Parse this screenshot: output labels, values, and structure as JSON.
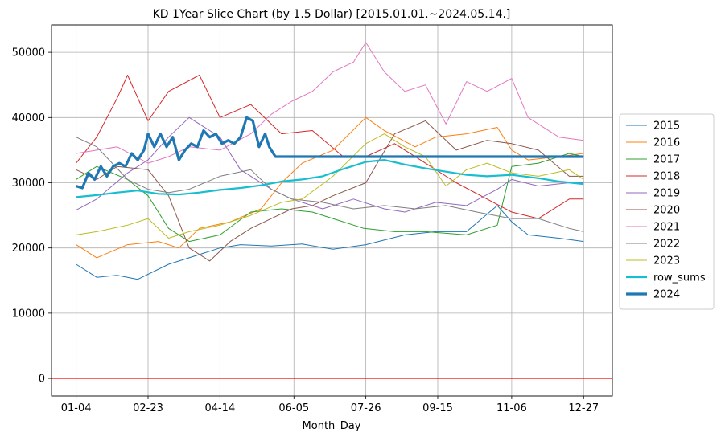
{
  "chart_data": {
    "type": "line",
    "title": "KD 1Year Slice Chart (by 1.5 Dollar) [2015.01.01.~2024.05.14.]",
    "xlabel": "Month_Day",
    "ylabel": "",
    "x_tick_labels": [
      "01-04",
      "02-23",
      "04-14",
      "06-05",
      "07-26",
      "09-15",
      "11-06",
      "12-27"
    ],
    "x_tick_day_index": [
      0,
      35,
      70,
      106,
      141,
      176,
      212,
      247
    ],
    "x_range": [
      -12,
      261
    ],
    "y_ticks": [
      0,
      10000,
      20000,
      30000,
      40000,
      50000
    ],
    "ylim": [
      -2700,
      54200
    ],
    "grid": true,
    "legend_position": "center-right, outside plot",
    "reference_line": {
      "y": 0,
      "color": "#ff0000"
    },
    "series": [
      {
        "name": "2015",
        "color": "#1f77b4",
        "width": 1,
        "x": [
          0,
          10,
          20,
          30,
          45,
          55,
          70,
          80,
          95,
          110,
          125,
          141,
          160,
          175,
          190,
          205,
          212,
          220,
          235,
          247
        ],
        "values": [
          17500,
          15500,
          15800,
          15200,
          17500,
          18500,
          20000,
          20500,
          20300,
          20600,
          19800,
          20500,
          22000,
          22500,
          22500,
          26500,
          24000,
          22000,
          21500,
          21000
        ]
      },
      {
        "name": "2016",
        "color": "#ff7f0e",
        "width": 1,
        "x": [
          0,
          10,
          25,
          40,
          50,
          60,
          75,
          90,
          100,
          110,
          125,
          141,
          150,
          165,
          175,
          190,
          205,
          212,
          220,
          235,
          247
        ],
        "values": [
          20500,
          18500,
          20500,
          21000,
          20000,
          23000,
          24000,
          26000,
          30000,
          33000,
          35000,
          40000,
          38000,
          35500,
          37000,
          37500,
          38500,
          35000,
          33500,
          34000,
          34500
        ]
      },
      {
        "name": "2017",
        "color": "#2ca02c",
        "width": 1,
        "x": [
          0,
          10,
          25,
          35,
          45,
          55,
          70,
          85,
          100,
          115,
          125,
          140,
          155,
          170,
          190,
          205,
          212,
          225,
          240,
          247
        ],
        "values": [
          30500,
          32500,
          30500,
          28000,
          23000,
          21000,
          22000,
          25500,
          26000,
          25500,
          24500,
          23000,
          22500,
          22500,
          22000,
          23500,
          32500,
          33000,
          34500,
          34000
        ]
      },
      {
        "name": "2018",
        "color": "#d62728",
        "width": 1,
        "x": [
          0,
          10,
          20,
          25,
          35,
          45,
          60,
          70,
          85,
          100,
          115,
          130,
          141,
          155,
          170,
          185,
          200,
          212,
          225,
          240,
          247
        ],
        "values": [
          33000,
          37000,
          43000,
          46500,
          39500,
          44000,
          46500,
          40000,
          42000,
          37500,
          38000,
          34000,
          34000,
          36000,
          33000,
          30000,
          27500,
          25500,
          24500,
          27500,
          27500
        ]
      },
      {
        "name": "2019",
        "color": "#9467bd",
        "width": 1,
        "x": [
          0,
          10,
          25,
          35,
          45,
          55,
          70,
          80,
          95,
          105,
          120,
          135,
          150,
          160,
          175,
          190,
          205,
          212,
          225,
          240,
          247
        ],
        "values": [
          25800,
          27500,
          31500,
          33500,
          37000,
          40000,
          37000,
          32000,
          29000,
          27500,
          26000,
          27500,
          26000,
          25500,
          27000,
          26500,
          29000,
          30500,
          29500,
          30000,
          30000
        ]
      },
      {
        "name": "2020",
        "color": "#8c564b",
        "width": 1,
        "x": [
          0,
          10,
          20,
          35,
          45,
          55,
          65,
          75,
          85,
          95,
          105,
          115,
          125,
          141,
          155,
          170,
          185,
          200,
          212,
          225,
          240,
          247
        ],
        "values": [
          32000,
          30500,
          32500,
          32000,
          28000,
          20000,
          18000,
          21000,
          23000,
          24500,
          26000,
          26500,
          28000,
          30000,
          37500,
          39500,
          35000,
          36500,
          36000,
          35000,
          31000,
          31000
        ]
      },
      {
        "name": "2021",
        "color": "#e377c2",
        "width": 1,
        "x": [
          0,
          10,
          20,
          35,
          45,
          55,
          70,
          85,
          95,
          105,
          115,
          125,
          135,
          141,
          150,
          160,
          170,
          180,
          190,
          200,
          212,
          220,
          235,
          247
        ],
        "values": [
          34500,
          35000,
          35500,
          33000,
          34000,
          35500,
          35000,
          37500,
          40500,
          42500,
          44000,
          47000,
          48500,
          51500,
          47000,
          44000,
          45000,
          39000,
          45500,
          44000,
          46000,
          40000,
          37000,
          36500
        ]
      },
      {
        "name": "2022",
        "color": "#7f7f7f",
        "width": 1,
        "x": [
          0,
          10,
          25,
          35,
          45,
          55,
          70,
          85,
          95,
          105,
          120,
          135,
          150,
          165,
          180,
          195,
          212,
          225,
          240,
          247
        ],
        "values": [
          37000,
          35500,
          30500,
          29000,
          28500,
          29000,
          31000,
          32000,
          29000,
          27500,
          27000,
          26000,
          26500,
          26000,
          26500,
          25500,
          24500,
          24500,
          23000,
          22500
        ]
      },
      {
        "name": "2023",
        "color": "#bcbd22",
        "width": 1,
        "x": [
          0,
          10,
          25,
          35,
          45,
          55,
          70,
          85,
          100,
          110,
          125,
          141,
          150,
          160,
          170,
          180,
          190,
          200,
          212,
          225,
          240,
          247
        ],
        "values": [
          22000,
          22500,
          23500,
          24500,
          21500,
          22500,
          23500,
          25000,
          27000,
          27500,
          31000,
          36000,
          37500,
          35500,
          34000,
          29500,
          32000,
          33000,
          31500,
          31000,
          32000,
          30500
        ]
      },
      {
        "name": "row_sums",
        "color": "#17becf",
        "width": 2.2,
        "x": [
          0,
          10,
          20,
          30,
          40,
          50,
          60,
          70,
          80,
          90,
          100,
          110,
          120,
          130,
          141,
          150,
          160,
          170,
          180,
          190,
          200,
          212,
          225,
          235,
          247
        ],
        "values": [
          27800,
          28100,
          28500,
          28800,
          28300,
          28200,
          28500,
          28900,
          29200,
          29600,
          30200,
          30500,
          31000,
          32100,
          33200,
          33500,
          32800,
          32200,
          31700,
          31200,
          31000,
          31200,
          30700,
          30200,
          29800
        ]
      },
      {
        "name": "2024",
        "color": "#1f77b4",
        "width": 3.2,
        "x": [
          0,
          3,
          6,
          9,
          12,
          15,
          18,
          21,
          24,
          27,
          30,
          33,
          35,
          38,
          41,
          44,
          47,
          50,
          53,
          56,
          59,
          62,
          65,
          68,
          71,
          74,
          77,
          80,
          83,
          86,
          89,
          92,
          94,
          96,
          97,
          247
        ],
        "values": [
          29500,
          29200,
          31500,
          30500,
          32500,
          31000,
          32500,
          33000,
          32500,
          34500,
          33500,
          35000,
          37500,
          35500,
          37500,
          35500,
          37000,
          33500,
          35000,
          36000,
          35500,
          38000,
          37000,
          37500,
          36000,
          36500,
          36000,
          37000,
          40000,
          39500,
          35500,
          37500,
          35500,
          34500,
          34000,
          34000
        ]
      }
    ]
  }
}
